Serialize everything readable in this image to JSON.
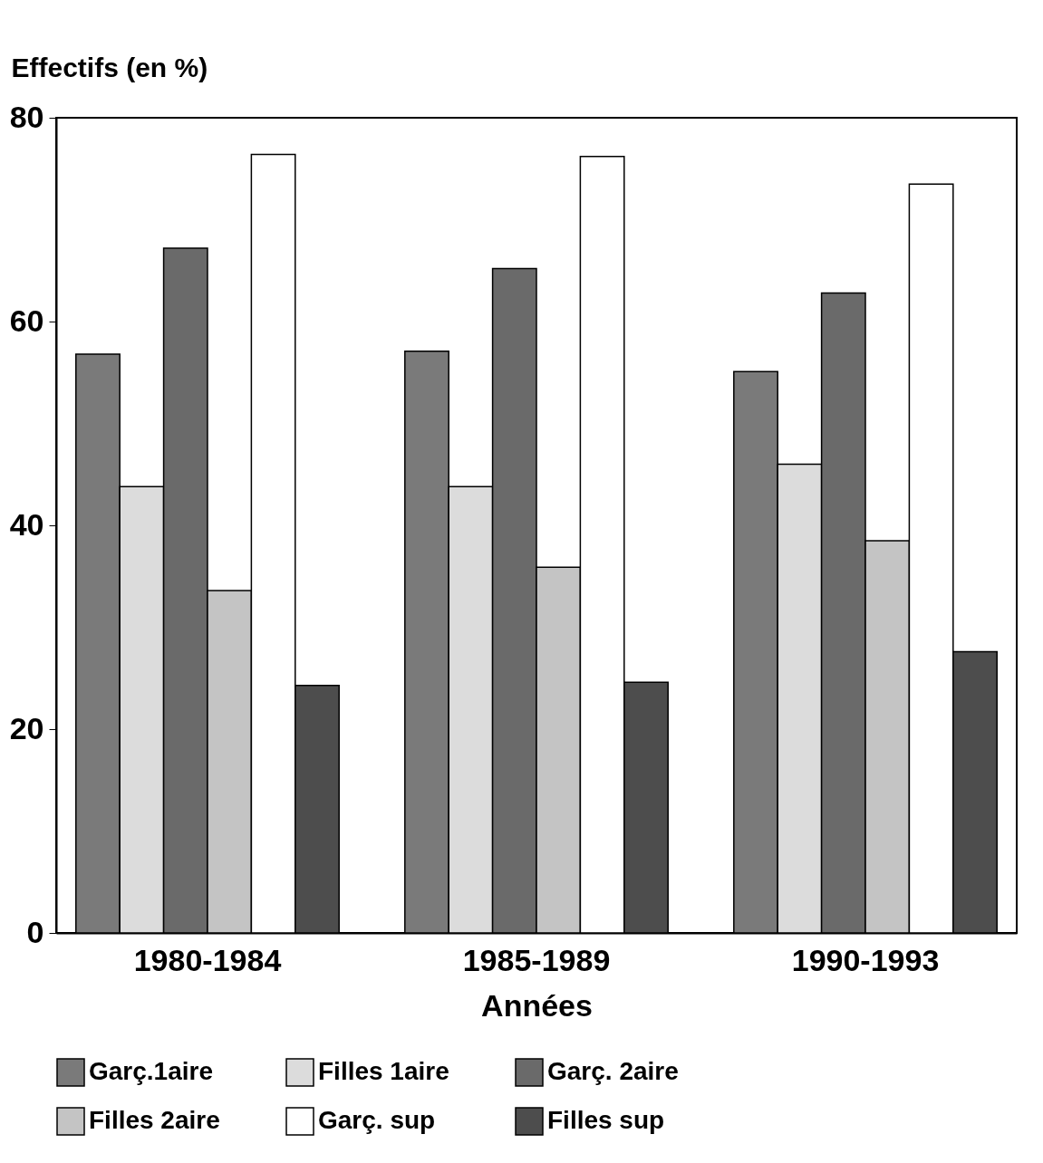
{
  "chart_data": {
    "type": "bar",
    "ylabel": "Effectifs (en %)",
    "xlabel": "Années",
    "categories": [
      "1980-1984",
      "1985-1989",
      "1990-1993"
    ],
    "series": [
      {
        "name": "Garç.1aire",
        "color": "#7a7a7a",
        "values": [
          56.8,
          57.1,
          55.1
        ]
      },
      {
        "name": "Filles 1aire",
        "color": "#dcdcdc",
        "values": [
          43.8,
          43.8,
          46.0
        ]
      },
      {
        "name": "Garç. 2aire",
        "color": "#6a6a6a",
        "values": [
          67.2,
          65.2,
          62.8
        ]
      },
      {
        "name": "Filles 2aire",
        "color": "#c4c4c4",
        "values": [
          33.6,
          35.9,
          38.5
        ]
      },
      {
        "name": "Garç. sup",
        "color": "#ffffff",
        "values": [
          76.4,
          76.2,
          73.5
        ]
      },
      {
        "name": "Filles sup",
        "color": "#4d4d4d",
        "values": [
          24.3,
          24.6,
          27.6
        ]
      }
    ],
    "ylim": [
      0,
      80
    ],
    "yticks": [
      0,
      20,
      40,
      60,
      80
    ],
    "grid": false,
    "legend": "bottom"
  }
}
